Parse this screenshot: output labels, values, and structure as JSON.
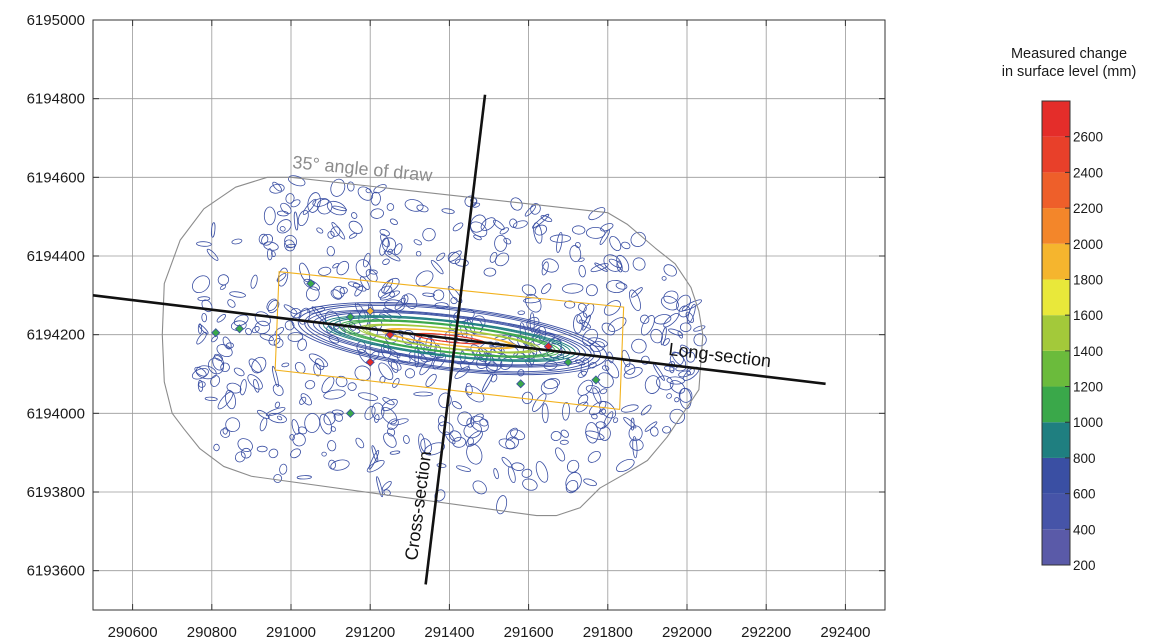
{
  "chart_data": {
    "type": "contour",
    "x_ticks": [
      290600,
      290800,
      291000,
      291200,
      291400,
      291600,
      291800,
      292000,
      292200,
      292400
    ],
    "y_ticks": [
      6193600,
      6193800,
      6194000,
      6194200,
      6194400,
      6194600,
      6194800,
      6195000
    ],
    "xlim": [
      290500,
      292500
    ],
    "ylim": [
      6193500,
      6195000
    ],
    "grid": true,
    "legend": {
      "title_line1": "Measured change",
      "title_line2": "in surface level (mm)",
      "placement": "right",
      "levels": [
        200,
        400,
        600,
        800,
        1000,
        1200,
        1400,
        1600,
        1800,
        2000,
        2200,
        2400,
        2600
      ],
      "level_labels": [
        "200",
        "400",
        "600",
        "800",
        "1000",
        "1200",
        "1400",
        "1600",
        "1800",
        "2000",
        "2200",
        "2400",
        "2600"
      ],
      "colors": [
        "#5a5aa8",
        "#4654a8",
        "#3a4fa3",
        "#1f7f80",
        "#3aa84a",
        "#6bbb3c",
        "#a3c93a",
        "#e9e83a",
        "#f5b52e",
        "#f3862a",
        "#ee5f2a",
        "#e8402a",
        "#e42d2a"
      ],
      "max": 2800
    },
    "angle_of_draw": {
      "label": "35° angle of draw",
      "color": "#8c8c8c",
      "polygon": [
        [
          291000,
          6194600
        ],
        [
          291800,
          6194510
        ],
        [
          291850,
          6194480
        ],
        [
          291920,
          6194420
        ],
        [
          291970,
          6194380
        ],
        [
          292010,
          6194320
        ],
        [
          292030,
          6194260
        ],
        [
          292040,
          6194200
        ],
        [
          292030,
          6194060
        ],
        [
          291990,
          6194000
        ],
        [
          291950,
          6193940
        ],
        [
          291900,
          6193880
        ],
        [
          291850,
          6193850
        ],
        [
          291780,
          6193810
        ],
        [
          291730,
          6193760
        ],
        [
          291670,
          6193740
        ],
        [
          291620,
          6193740
        ],
        [
          290900,
          6193840
        ],
        [
          290830,
          6193865
        ],
        [
          290770,
          6193910
        ],
        [
          290730,
          6193960
        ],
        [
          290700,
          6194000
        ],
        [
          290680,
          6194080
        ],
        [
          290675,
          6194200
        ],
        [
          290680,
          6194330
        ],
        [
          290720,
          6194440
        ],
        [
          290780,
          6194520
        ],
        [
          290860,
          6194575
        ],
        [
          290940,
          6194600
        ]
      ]
    },
    "panel_outline": {
      "color": "#f2b21e",
      "polygon": [
        [
          290970,
          6194360
        ],
        [
          291840,
          6194270
        ],
        [
          291830,
          6194010
        ],
        [
          290960,
          6194110
        ]
      ]
    },
    "long_section": {
      "label": "Long-section",
      "color": "#111111",
      "from": [
        290500,
        6194300
      ],
      "to": [
        292350,
        6194075
      ]
    },
    "cross_section": {
      "label": "Cross-section",
      "color": "#111111",
      "from": [
        291340,
        6193565
      ],
      "to": [
        291490,
        6194810
      ]
    },
    "subsidence_trough": {
      "centerline": [
        [
          291050,
          6194230
        ],
        [
          291750,
          6194150
        ]
      ],
      "rings": [
        {
          "level": 200,
          "color": "#3a4fa3",
          "half_length": 400,
          "half_width": 80
        },
        {
          "level": 600,
          "color": "#3a4fa3",
          "half_length": 360,
          "half_width": 60
        },
        {
          "level": 1000,
          "color": "#1f7f80",
          "half_length": 320,
          "half_width": 46
        },
        {
          "level": 1400,
          "color": "#3aa84a",
          "half_length": 280,
          "half_width": 36
        },
        {
          "level": 1800,
          "color": "#a3c93a",
          "half_length": 230,
          "half_width": 26
        },
        {
          "level": 2200,
          "color": "#f5b52e",
          "half_length": 170,
          "half_width": 17
        },
        {
          "level": 2600,
          "color": "#e8402a",
          "half_length": 90,
          "half_width": 9
        }
      ]
    },
    "markers": [
      {
        "x": 291650,
        "y": 6194170,
        "color": "#e42d2a"
      },
      {
        "x": 291250,
        "y": 6194200,
        "color": "#e42d2a"
      },
      {
        "x": 291200,
        "y": 6194130,
        "color": "#e42d2a"
      },
      {
        "x": 291150,
        "y": 6194245,
        "color": "#3aa84a"
      },
      {
        "x": 291200,
        "y": 6194260,
        "color": "#f5b52e"
      },
      {
        "x": 291050,
        "y": 6194330,
        "color": "#3aa84a"
      },
      {
        "x": 290810,
        "y": 6194205,
        "color": "#3aa84a"
      },
      {
        "x": 290870,
        "y": 6194215,
        "color": "#3aa84a"
      },
      {
        "x": 291150,
        "y": 6194000,
        "color": "#3aa84a"
      },
      {
        "x": 291580,
        "y": 6194075,
        "color": "#3aa84a"
      },
      {
        "x": 291700,
        "y": 6194130,
        "color": "#3aa84a"
      },
      {
        "x": 291770,
        "y": 6194085,
        "color": "#3aa84a"
      }
    ]
  }
}
